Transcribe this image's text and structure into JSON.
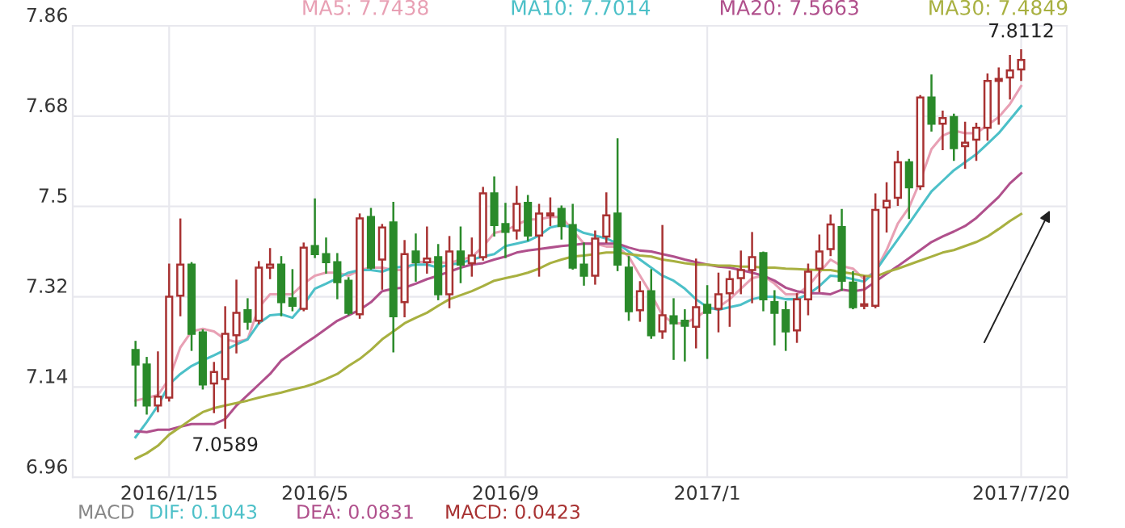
{
  "chart_data": {
    "type": "candlestick",
    "categories": [
      null,
      null,
      null,
      "2016/1/15",
      null,
      null,
      null,
      null,
      null,
      null,
      null,
      null,
      null,
      null,
      null,
      null,
      "2016/5",
      null,
      null,
      null,
      null,
      null,
      null,
      null,
      null,
      null,
      null,
      null,
      null,
      null,
      null,
      null,
      null,
      "2016/9",
      null,
      null,
      null,
      null,
      null,
      null,
      null,
      null,
      null,
      null,
      null,
      null,
      null,
      null,
      null,
      null,
      null,
      "2017/1",
      null,
      null,
      null,
      null,
      null,
      null,
      null,
      null,
      null,
      null,
      null,
      null,
      null,
      null,
      null,
      null,
      null,
      null,
      null,
      null,
      null,
      null,
      null,
      null,
      null,
      null,
      null,
      "2017/7/20"
    ],
    "ohlc": [
      [
        7.214,
        7.23,
        7.103,
        7.185
      ],
      [
        7.185,
        7.198,
        7.087,
        7.103
      ],
      [
        7.103,
        7.209,
        7.092,
        7.121
      ],
      [
        7.119,
        7.384,
        7.113,
        7.32
      ],
      [
        7.322,
        7.474,
        7.283,
        7.384
      ],
      [
        7.384,
        7.387,
        7.214,
        7.246
      ],
      [
        7.249,
        7.253,
        7.137,
        7.145
      ],
      [
        7.147,
        7.188,
        7.09,
        7.17
      ],
      [
        7.156,
        7.299,
        7.059,
        7.246
      ],
      [
        7.243,
        7.352,
        7.209,
        7.288
      ],
      [
        7.293,
        7.315,
        7.256,
        7.27
      ],
      [
        7.272,
        7.389,
        7.267,
        7.378
      ],
      [
        7.378,
        7.415,
        7.357,
        7.384
      ],
      [
        7.384,
        7.399,
        7.283,
        7.309
      ],
      [
        7.317,
        7.373,
        7.293,
        7.302
      ],
      [
        7.296,
        7.426,
        7.293,
        7.418
      ],
      [
        7.421,
        7.514,
        7.399,
        7.405
      ],
      [
        7.405,
        7.436,
        7.368,
        7.389
      ],
      [
        7.389,
        7.405,
        7.317,
        7.349
      ],
      [
        7.352,
        7.357,
        7.285,
        7.288
      ],
      [
        7.285,
        7.484,
        7.278,
        7.476
      ],
      [
        7.479,
        7.495,
        7.376,
        7.378
      ],
      [
        7.394,
        7.463,
        7.336,
        7.458
      ],
      [
        7.468,
        7.507,
        7.211,
        7.281
      ],
      [
        7.309,
        7.431,
        7.281,
        7.405
      ],
      [
        7.41,
        7.444,
        7.352,
        7.389
      ],
      [
        7.389,
        7.458,
        7.368,
        7.396
      ],
      [
        7.399,
        7.423,
        7.315,
        7.325
      ],
      [
        7.325,
        7.439,
        7.299,
        7.41
      ],
      [
        7.41,
        7.458,
        7.349,
        7.384
      ],
      [
        7.387,
        7.436,
        7.362,
        7.402
      ],
      [
        7.399,
        7.537,
        7.394,
        7.526
      ],
      [
        7.526,
        7.558,
        7.442,
        7.463
      ],
      [
        7.465,
        7.505,
        7.399,
        7.449
      ],
      [
        7.452,
        7.539,
        7.436,
        7.505
      ],
      [
        7.507,
        7.521,
        7.433,
        7.442
      ],
      [
        7.442,
        7.503,
        7.362,
        7.486
      ],
      [
        7.482,
        7.516,
        7.463,
        7.486
      ],
      [
        7.495,
        7.5,
        7.436,
        7.461
      ],
      [
        7.463,
        7.503,
        7.376,
        7.378
      ],
      [
        7.384,
        7.426,
        7.344,
        7.362
      ],
      [
        7.362,
        7.45,
        7.346,
        7.436
      ],
      [
        7.44,
        7.526,
        7.429,
        7.482
      ],
      [
        7.486,
        7.634,
        7.373,
        7.384
      ],
      [
        7.378,
        7.399,
        7.274,
        7.291
      ],
      [
        7.293,
        7.349,
        7.272,
        7.331
      ],
      [
        7.331,
        7.373,
        7.238,
        7.243
      ],
      [
        7.251,
        7.461,
        7.238,
        7.283
      ],
      [
        7.281,
        7.315,
        7.196,
        7.267
      ],
      [
        7.272,
        7.293,
        7.193,
        7.262
      ],
      [
        7.26,
        7.394,
        7.219,
        7.299
      ],
      [
        7.304,
        7.341,
        7.198,
        7.288
      ],
      [
        7.296,
        7.366,
        7.251,
        7.325
      ],
      [
        7.327,
        7.37,
        7.262,
        7.355
      ],
      [
        7.357,
        7.41,
        7.327,
        7.373
      ],
      [
        7.373,
        7.447,
        7.309,
        7.399
      ],
      [
        7.407,
        7.408,
        7.293,
        7.315
      ],
      [
        7.309,
        7.331,
        7.225,
        7.288
      ],
      [
        7.293,
        7.309,
        7.214,
        7.251
      ],
      [
        7.253,
        7.325,
        7.23,
        7.315
      ],
      [
        7.315,
        7.384,
        7.285,
        7.37
      ],
      [
        7.376,
        7.442,
        7.331,
        7.41
      ],
      [
        7.415,
        7.482,
        7.403,
        7.464
      ],
      [
        7.459,
        7.493,
        7.334,
        7.352
      ],
      [
        7.348,
        7.369,
        7.297,
        7.299
      ],
      [
        7.302,
        7.36,
        7.297,
        7.305
      ],
      [
        7.302,
        7.524,
        7.299,
        7.493
      ],
      [
        7.498,
        7.546,
        7.45,
        7.511
      ],
      [
        7.517,
        7.609,
        7.503,
        7.588
      ],
      [
        7.588,
        7.593,
        7.477,
        7.538
      ],
      [
        7.54,
        7.72,
        7.535,
        7.717
      ],
      [
        7.717,
        7.761,
        7.651,
        7.665
      ],
      [
        7.665,
        7.689,
        7.614,
        7.676
      ],
      [
        7.678,
        7.683,
        7.593,
        7.616
      ],
      [
        7.62,
        7.667,
        7.577,
        7.627
      ],
      [
        7.633,
        7.665,
        7.593,
        7.657
      ],
      [
        7.657,
        7.763,
        7.633,
        7.75
      ],
      [
        7.75,
        7.775,
        7.665,
        7.754
      ],
      [
        7.757,
        7.8,
        7.715,
        7.771
      ],
      [
        7.773,
        7.8112,
        7.752,
        7.792
      ]
    ],
    "series": [
      {
        "name": "MA5: 7.7438",
        "color": "#e8a0b4",
        "type": "line",
        "values": [
          7.113,
          7.118,
          7.124,
          7.156,
          7.219,
          7.251,
          7.256,
          7.251,
          7.235,
          7.23,
          7.235,
          7.299,
          7.325,
          7.325,
          7.325,
          7.346,
          7.362,
          7.368,
          7.368,
          7.362,
          7.373,
          7.378,
          7.378,
          7.373,
          7.373,
          7.389,
          7.389,
          7.389,
          7.387,
          7.394,
          7.399,
          7.42,
          7.447,
          7.452,
          7.463,
          7.474,
          7.474,
          7.479,
          7.479,
          7.452,
          7.426,
          7.426,
          7.42,
          7.42,
          7.4,
          7.362,
          7.325,
          7.283,
          7.267,
          7.267,
          7.278,
          7.294,
          7.299,
          7.315,
          7.336,
          7.357,
          7.362,
          7.346,
          7.325,
          7.325,
          7.341,
          7.368,
          7.394,
          7.381,
          7.376,
          7.355,
          7.371,
          7.413,
          7.466,
          7.498,
          7.551,
          7.614,
          7.641,
          7.651,
          7.646,
          7.646,
          7.662,
          7.678,
          7.704,
          7.74
        ]
      },
      {
        "name": "MA10: 7.7014",
        "color": "#4cc0c8",
        "type": "line",
        "values": [
          7.04,
          7.07,
          7.103,
          7.145,
          7.166,
          7.182,
          7.193,
          7.203,
          7.214,
          7.225,
          7.235,
          7.267,
          7.283,
          7.285,
          7.278,
          7.304,
          7.336,
          7.346,
          7.357,
          7.368,
          7.373,
          7.373,
          7.37,
          7.378,
          7.38,
          7.384,
          7.384,
          7.378,
          7.384,
          7.387,
          7.394,
          7.4,
          7.405,
          7.421,
          7.426,
          7.431,
          7.442,
          7.458,
          7.463,
          7.458,
          7.447,
          7.442,
          7.436,
          7.426,
          7.41,
          7.394,
          7.378,
          7.362,
          7.352,
          7.336,
          7.315,
          7.299,
          7.294,
          7.299,
          7.304,
          7.315,
          7.32,
          7.32,
          7.315,
          7.315,
          7.325,
          7.341,
          7.362,
          7.36,
          7.355,
          7.35,
          7.371,
          7.403,
          7.434,
          7.466,
          7.498,
          7.53,
          7.551,
          7.572,
          7.588,
          7.604,
          7.625,
          7.646,
          7.673,
          7.7
        ]
      },
      {
        "name": "MA20: 7.5663",
        "color": "#b0508c",
        "type": "line",
        "values": [
          7.052,
          7.05,
          7.055,
          7.055,
          7.061,
          7.066,
          7.066,
          7.066,
          7.076,
          7.103,
          7.124,
          7.145,
          7.166,
          7.193,
          7.209,
          7.225,
          7.24,
          7.256,
          7.272,
          7.283,
          7.294,
          7.309,
          7.331,
          7.336,
          7.338,
          7.346,
          7.355,
          7.362,
          7.37,
          7.378,
          7.384,
          7.387,
          7.394,
          7.4,
          7.408,
          7.412,
          7.415,
          7.418,
          7.421,
          7.423,
          7.426,
          7.426,
          7.426,
          7.426,
          7.418,
          7.412,
          7.41,
          7.405,
          7.4,
          7.394,
          7.389,
          7.384,
          7.38,
          7.378,
          7.373,
          7.368,
          7.362,
          7.352,
          7.338,
          7.331,
          7.327,
          7.327,
          7.325,
          7.334,
          7.331,
          7.334,
          7.35,
          7.366,
          7.381,
          7.397,
          7.413,
          7.429,
          7.44,
          7.45,
          7.461,
          7.477,
          7.498,
          7.519,
          7.546,
          7.566
        ]
      },
      {
        "name": "MA30: 7.4849",
        "color": "#a8b040",
        "type": "line",
        "values": [
          6.997,
          7.008,
          7.023,
          7.045,
          7.06,
          7.076,
          7.09,
          7.098,
          7.103,
          7.108,
          7.113,
          7.119,
          7.124,
          7.129,
          7.135,
          7.14,
          7.147,
          7.156,
          7.166,
          7.182,
          7.196,
          7.214,
          7.235,
          7.251,
          7.267,
          7.278,
          7.288,
          7.302,
          7.315,
          7.323,
          7.331,
          7.341,
          7.352,
          7.357,
          7.362,
          7.368,
          7.376,
          7.387,
          7.394,
          7.4,
          7.402,
          7.405,
          7.408,
          7.408,
          7.405,
          7.402,
          7.4,
          7.394,
          7.391,
          7.387,
          7.384,
          7.384,
          7.382,
          7.382,
          7.38,
          7.38,
          7.378,
          7.378,
          7.376,
          7.375,
          7.374,
          7.373,
          7.373,
          7.369,
          7.366,
          7.362,
          7.36,
          7.369,
          7.376,
          7.384,
          7.392,
          7.4,
          7.408,
          7.413,
          7.421,
          7.429,
          7.44,
          7.455,
          7.471,
          7.485
        ]
      }
    ],
    "ylim": [
      6.96,
      7.86
    ],
    "yticks": [
      6.96,
      7.14,
      7.32,
      7.5,
      7.68,
      7.86
    ],
    "grid": true,
    "legend": "top",
    "marker": "none",
    "line_style": "solid",
    "annotations": [
      {
        "text": "7.8112",
        "x": "2017/7/20",
        "y": 7.8112
      },
      {
        "text": "7.0589",
        "y": 7.059
      },
      "MACD",
      "DIF: 0.1043",
      "DEA: 0.0831",
      "MACD: 0.0423"
    ]
  }
}
